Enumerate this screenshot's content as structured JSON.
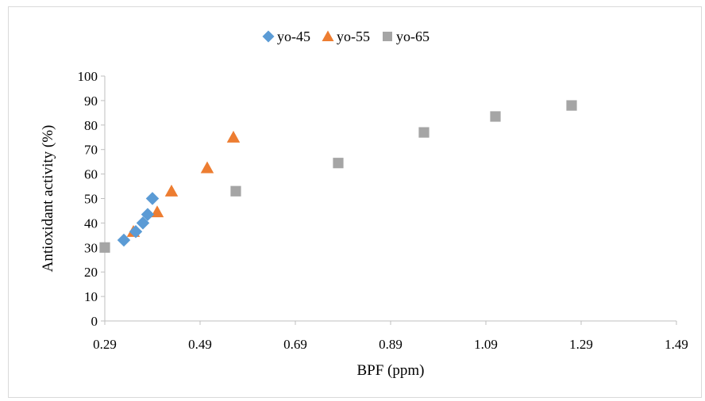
{
  "chart_data": {
    "type": "scatter",
    "title": "",
    "xlabel": "BPF (ppm)",
    "ylabel": "Antioxidant  activity (%)",
    "xlim": [
      0.29,
      1.49
    ],
    "ylim": [
      0,
      100
    ],
    "x_ticks": [
      "0.29",
      "0.49",
      "0.69",
      "0.89",
      "1.09",
      "1.29",
      "1.49"
    ],
    "y_ticks": [
      "0",
      "10",
      "20",
      "30",
      "40",
      "50",
      "60",
      "70",
      "80",
      "90",
      "100"
    ],
    "grid": false,
    "legend_position": "top",
    "series": [
      {
        "name": "yo-45",
        "marker": "diamond",
        "color": "#5b9bd5",
        "points": [
          [
            0.33,
            33.0
          ],
          [
            0.355,
            36.5
          ],
          [
            0.37,
            40.0
          ],
          [
            0.38,
            43.5
          ],
          [
            0.39,
            50.0
          ]
        ]
      },
      {
        "name": "yo-55",
        "marker": "triangle",
        "color": "#ed7d31",
        "points": [
          [
            0.35,
            36.5
          ],
          [
            0.4,
            44.5
          ],
          [
            0.43,
            53.0
          ],
          [
            0.505,
            62.5
          ],
          [
            0.56,
            75.0
          ]
        ]
      },
      {
        "name": "yo-65",
        "marker": "square",
        "color": "#a5a5a5",
        "points": [
          [
            0.29,
            30.0
          ],
          [
            0.565,
            53.0
          ],
          [
            0.78,
            64.5
          ],
          [
            0.96,
            77.0
          ],
          [
            1.11,
            83.5
          ],
          [
            1.27,
            88.0
          ]
        ]
      }
    ]
  }
}
